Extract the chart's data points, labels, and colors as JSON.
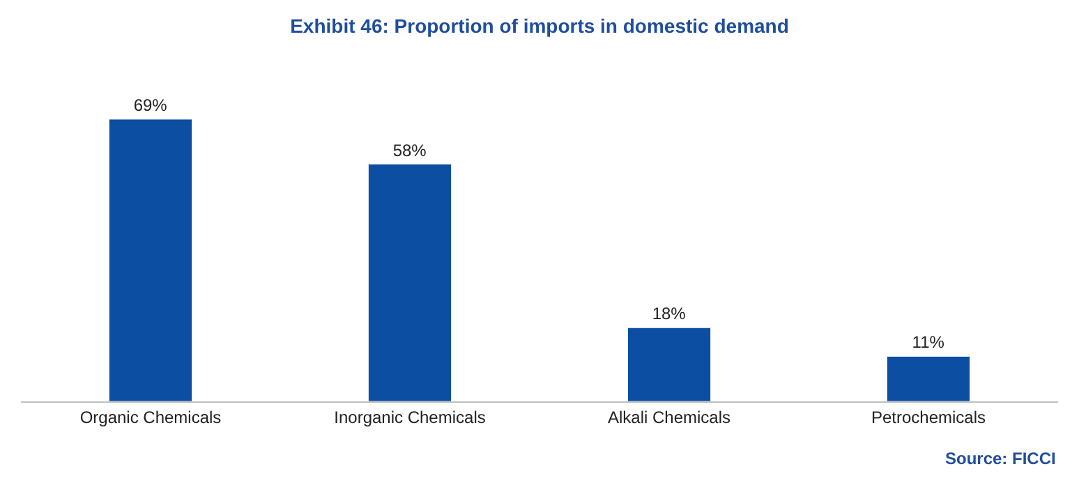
{
  "chart_data": {
    "type": "bar",
    "title": "Exhibit 46: Proportion of imports in domestic demand",
    "categories": [
      "Organic Chemicals",
      "Inorganic Chemicals",
      "Alkali Chemicals",
      "Petrochemicals"
    ],
    "values": [
      69,
      58,
      18,
      11
    ],
    "value_labels": [
      "69%",
      "58%",
      "18%",
      "11%"
    ],
    "color": "#0b4ea2",
    "annotations": [
      "Source: FICCI"
    ]
  }
}
